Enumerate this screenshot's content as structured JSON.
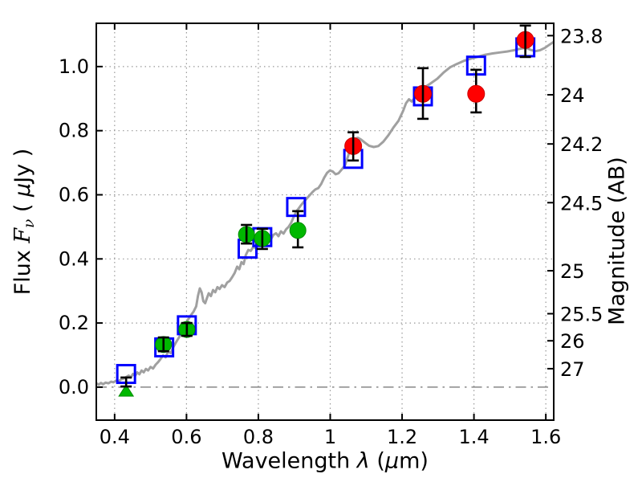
{
  "labels": {
    "xlabel_pre": "Wavelength ",
    "xlabel_lambda": "λ",
    "xlabel_mid": " (",
    "xlabel_mu": "μ",
    "xlabel_post": "m)",
    "ylabel_pre": "Flux ",
    "ylabel_F": "F",
    "ylabel_nu": "ν",
    "ylabel_mid": " ( ",
    "ylabel_mu": "μ",
    "ylabel_post": "Jy )",
    "y2label": "Magnitude (AB)"
  },
  "chart_data": {
    "type": "scatter",
    "title": "",
    "xlabel": "Wavelength λ (μm)",
    "ylabel": "Flux Fν ( μJy )",
    "y2label": "Magnitude (AB)",
    "xlim": [
      0.349,
      1.622
    ],
    "ylim": [
      -0.103,
      1.135
    ],
    "grid": "dotted",
    "zero_line_style": "dash-dot",
    "ab_zeropoint": 23.9,
    "x_ticks": [
      {
        "v": 0.4,
        "label": "0.4"
      },
      {
        "v": 0.6,
        "label": "0.6"
      },
      {
        "v": 0.8,
        "label": "0.8"
      },
      {
        "v": 1.0,
        "label": "1"
      },
      {
        "v": 1.2,
        "label": "1.2"
      },
      {
        "v": 1.4,
        "label": "1.4"
      },
      {
        "v": 1.6,
        "label": "1.6"
      }
    ],
    "y_ticks": [
      {
        "v": 0.0,
        "label": "0.0"
      },
      {
        "v": 0.2,
        "label": "0.2"
      },
      {
        "v": 0.4,
        "label": "0.4"
      },
      {
        "v": 0.6,
        "label": "0.6"
      },
      {
        "v": 0.8,
        "label": "0.8"
      },
      {
        "v": 1.0,
        "label": "1.0"
      }
    ],
    "y2_ticks": [
      {
        "mag": 23.8,
        "label": "23.8"
      },
      {
        "mag": 24.0,
        "label": "24"
      },
      {
        "mag": 24.2,
        "label": "24.2"
      },
      {
        "mag": 24.5,
        "label": "24.5"
      },
      {
        "mag": 25.0,
        "label": "25"
      },
      {
        "mag": 25.5,
        "label": "25.5"
      },
      {
        "mag": 26.0,
        "label": "26"
      },
      {
        "mag": 27.0,
        "label": "27"
      }
    ],
    "colors": {
      "model_line": "#a0a0a0",
      "model_photometry": "#0000ff",
      "observed_green": "#00b800",
      "observed_green_edge": "#008c00",
      "observed_red": "#ff0000",
      "observed_red_edge": "#cc0000",
      "error_bar": "#000000",
      "grid": "#999999",
      "zero_line": "#888888",
      "spine": "#000000"
    },
    "series": [
      {
        "name": "model-spectrum",
        "kind": "line",
        "points": [
          [
            0.349,
            0.012
          ],
          [
            0.356,
            0.008
          ],
          [
            0.362,
            0.013
          ],
          [
            0.368,
            0.009
          ],
          [
            0.375,
            0.014
          ],
          [
            0.383,
            0.012
          ],
          [
            0.39,
            0.017
          ],
          [
            0.397,
            0.015
          ],
          [
            0.404,
            0.02
          ],
          [
            0.411,
            0.018
          ],
          [
            0.418,
            0.024
          ],
          [
            0.425,
            0.027
          ],
          [
            0.432,
            0.031
          ],
          [
            0.439,
            0.036
          ],
          [
            0.445,
            0.03
          ],
          [
            0.451,
            0.041
          ],
          [
            0.457,
            0.035
          ],
          [
            0.463,
            0.046
          ],
          [
            0.469,
            0.04
          ],
          [
            0.475,
            0.052
          ],
          [
            0.481,
            0.046
          ],
          [
            0.487,
            0.057
          ],
          [
            0.493,
            0.052
          ],
          [
            0.5,
            0.063
          ],
          [
            0.507,
            0.058
          ],
          [
            0.514,
            0.07
          ],
          [
            0.521,
            0.078
          ],
          [
            0.528,
            0.088
          ],
          [
            0.535,
            0.099
          ],
          [
            0.542,
            0.093
          ],
          [
            0.549,
            0.112
          ],
          [
            0.556,
            0.106
          ],
          [
            0.563,
            0.124
          ],
          [
            0.571,
            0.14
          ],
          [
            0.579,
            0.155
          ],
          [
            0.588,
            0.172
          ],
          [
            0.596,
            0.192
          ],
          [
            0.604,
            0.21
          ],
          [
            0.612,
            0.224
          ],
          [
            0.62,
            0.236
          ],
          [
            0.627,
            0.252
          ],
          [
            0.632,
            0.285
          ],
          [
            0.637,
            0.308
          ],
          [
            0.642,
            0.296
          ],
          [
            0.647,
            0.268
          ],
          [
            0.652,
            0.262
          ],
          [
            0.657,
            0.278
          ],
          [
            0.662,
            0.293
          ],
          [
            0.668,
            0.284
          ],
          [
            0.674,
            0.303
          ],
          [
            0.68,
            0.296
          ],
          [
            0.686,
            0.312
          ],
          [
            0.692,
            0.306
          ],
          [
            0.699,
            0.318
          ],
          [
            0.706,
            0.312
          ],
          [
            0.713,
            0.326
          ],
          [
            0.72,
            0.331
          ],
          [
            0.727,
            0.343
          ],
          [
            0.734,
            0.356
          ],
          [
            0.741,
            0.376
          ],
          [
            0.747,
            0.368
          ],
          [
            0.753,
            0.39
          ],
          [
            0.759,
            0.384
          ],
          [
            0.765,
            0.412
          ],
          [
            0.772,
            0.428
          ],
          [
            0.779,
            0.425
          ],
          [
            0.786,
            0.438
          ],
          [
            0.793,
            0.433
          ],
          [
            0.8,
            0.446
          ],
          [
            0.807,
            0.452
          ],
          [
            0.814,
            0.459
          ],
          [
            0.821,
            0.452
          ],
          [
            0.828,
            0.466
          ],
          [
            0.835,
            0.461
          ],
          [
            0.842,
            0.475
          ],
          [
            0.849,
            0.48
          ],
          [
            0.856,
            0.471
          ],
          [
            0.863,
            0.486
          ],
          [
            0.87,
            0.479
          ],
          [
            0.877,
            0.492
          ],
          [
            0.884,
            0.5
          ],
          [
            0.891,
            0.512
          ],
          [
            0.898,
            0.53
          ],
          [
            0.905,
            0.547
          ],
          [
            0.912,
            0.557
          ],
          [
            0.919,
            0.568
          ],
          [
            0.927,
            0.579
          ],
          [
            0.935,
            0.589
          ],
          [
            0.943,
            0.599
          ],
          [
            0.951,
            0.609
          ],
          [
            0.959,
            0.617
          ],
          [
            0.967,
            0.621
          ],
          [
            0.975,
            0.634
          ],
          [
            0.983,
            0.653
          ],
          [
            0.991,
            0.668
          ],
          [
            0.999,
            0.676
          ],
          [
            1.007,
            0.673
          ],
          [
            1.015,
            0.664
          ],
          [
            1.023,
            0.667
          ],
          [
            1.032,
            0.679
          ],
          [
            1.041,
            0.692
          ],
          [
            1.05,
            0.722
          ],
          [
            1.059,
            0.758
          ],
          [
            1.068,
            0.775
          ],
          [
            1.077,
            0.778
          ],
          [
            1.086,
            0.772
          ],
          [
            1.096,
            0.763
          ],
          [
            1.108,
            0.753
          ],
          [
            1.121,
            0.749
          ],
          [
            1.134,
            0.752
          ],
          [
            1.148,
            0.766
          ],
          [
            1.162,
            0.786
          ],
          [
            1.176,
            0.81
          ],
          [
            1.19,
            0.831
          ],
          [
            1.203,
            0.862
          ],
          [
            1.211,
            0.886
          ],
          [
            1.219,
            0.898
          ],
          [
            1.227,
            0.891
          ],
          [
            1.236,
            0.904
          ],
          [
            1.25,
            0.922
          ],
          [
            1.264,
            0.936
          ],
          [
            1.28,
            0.948
          ],
          [
            1.298,
            0.962
          ],
          [
            1.316,
            0.982
          ],
          [
            1.334,
            0.998
          ],
          [
            1.352,
            1.008
          ],
          [
            1.372,
            1.018
          ],
          [
            1.392,
            1.025
          ],
          [
            1.412,
            1.031
          ],
          [
            1.432,
            1.037
          ],
          [
            1.452,
            1.041
          ],
          [
            1.472,
            1.044
          ],
          [
            1.492,
            1.047
          ],
          [
            1.512,
            1.051
          ],
          [
            1.53,
            1.056
          ],
          [
            1.545,
            1.059
          ],
          [
            1.558,
            1.052
          ],
          [
            1.571,
            1.048
          ],
          [
            1.584,
            1.051
          ],
          [
            1.597,
            1.058
          ],
          [
            1.61,
            1.068
          ],
          [
            1.622,
            1.077
          ]
        ]
      },
      {
        "name": "model-photometry",
        "kind": "open-square",
        "points": [
          [
            0.432,
            0.041
          ],
          [
            0.538,
            0.124
          ],
          [
            0.601,
            0.193
          ],
          [
            0.77,
            0.432
          ],
          [
            0.811,
            0.468
          ],
          [
            0.905,
            0.562
          ],
          [
            1.064,
            0.712
          ],
          [
            1.258,
            0.907
          ],
          [
            1.406,
            1.003
          ],
          [
            1.543,
            1.06
          ]
        ]
      },
      {
        "name": "observed-green",
        "kind": "circle",
        "points": [
          {
            "x": 0.432,
            "y": 0.016,
            "lo": 0.014,
            "hi": 0.014,
            "marker": "none"
          },
          {
            "x": 0.536,
            "y": 0.133,
            "lo": 0.021,
            "hi": 0.022
          },
          {
            "x": 0.601,
            "y": 0.18,
            "lo": 0.02,
            "hi": 0.02
          },
          {
            "x": 0.767,
            "y": 0.476,
            "lo": 0.028,
            "hi": 0.03
          },
          {
            "x": 0.811,
            "y": 0.464,
            "lo": 0.033,
            "hi": 0.03
          },
          {
            "x": 0.91,
            "y": 0.489,
            "lo": 0.053,
            "hi": 0.06,
            "bar_behind": true
          }
        ]
      },
      {
        "name": "upper-limit",
        "kind": "triangle-up",
        "points": [
          {
            "x": 0.432,
            "y": -0.013
          }
        ]
      },
      {
        "name": "observed-red",
        "kind": "circle",
        "points": [
          {
            "x": 1.064,
            "y": 0.752,
            "lo": 0.045,
            "hi": 0.043
          },
          {
            "x": 1.258,
            "y": 0.915,
            "lo": 0.078,
            "hi": 0.08
          },
          {
            "x": 1.406,
            "y": 0.915,
            "lo": 0.058,
            "hi": 0.075,
            "bar_behind": true
          },
          {
            "x": 1.543,
            "y": 1.083,
            "lo": 0.053,
            "hi": 0.045
          }
        ]
      }
    ]
  }
}
